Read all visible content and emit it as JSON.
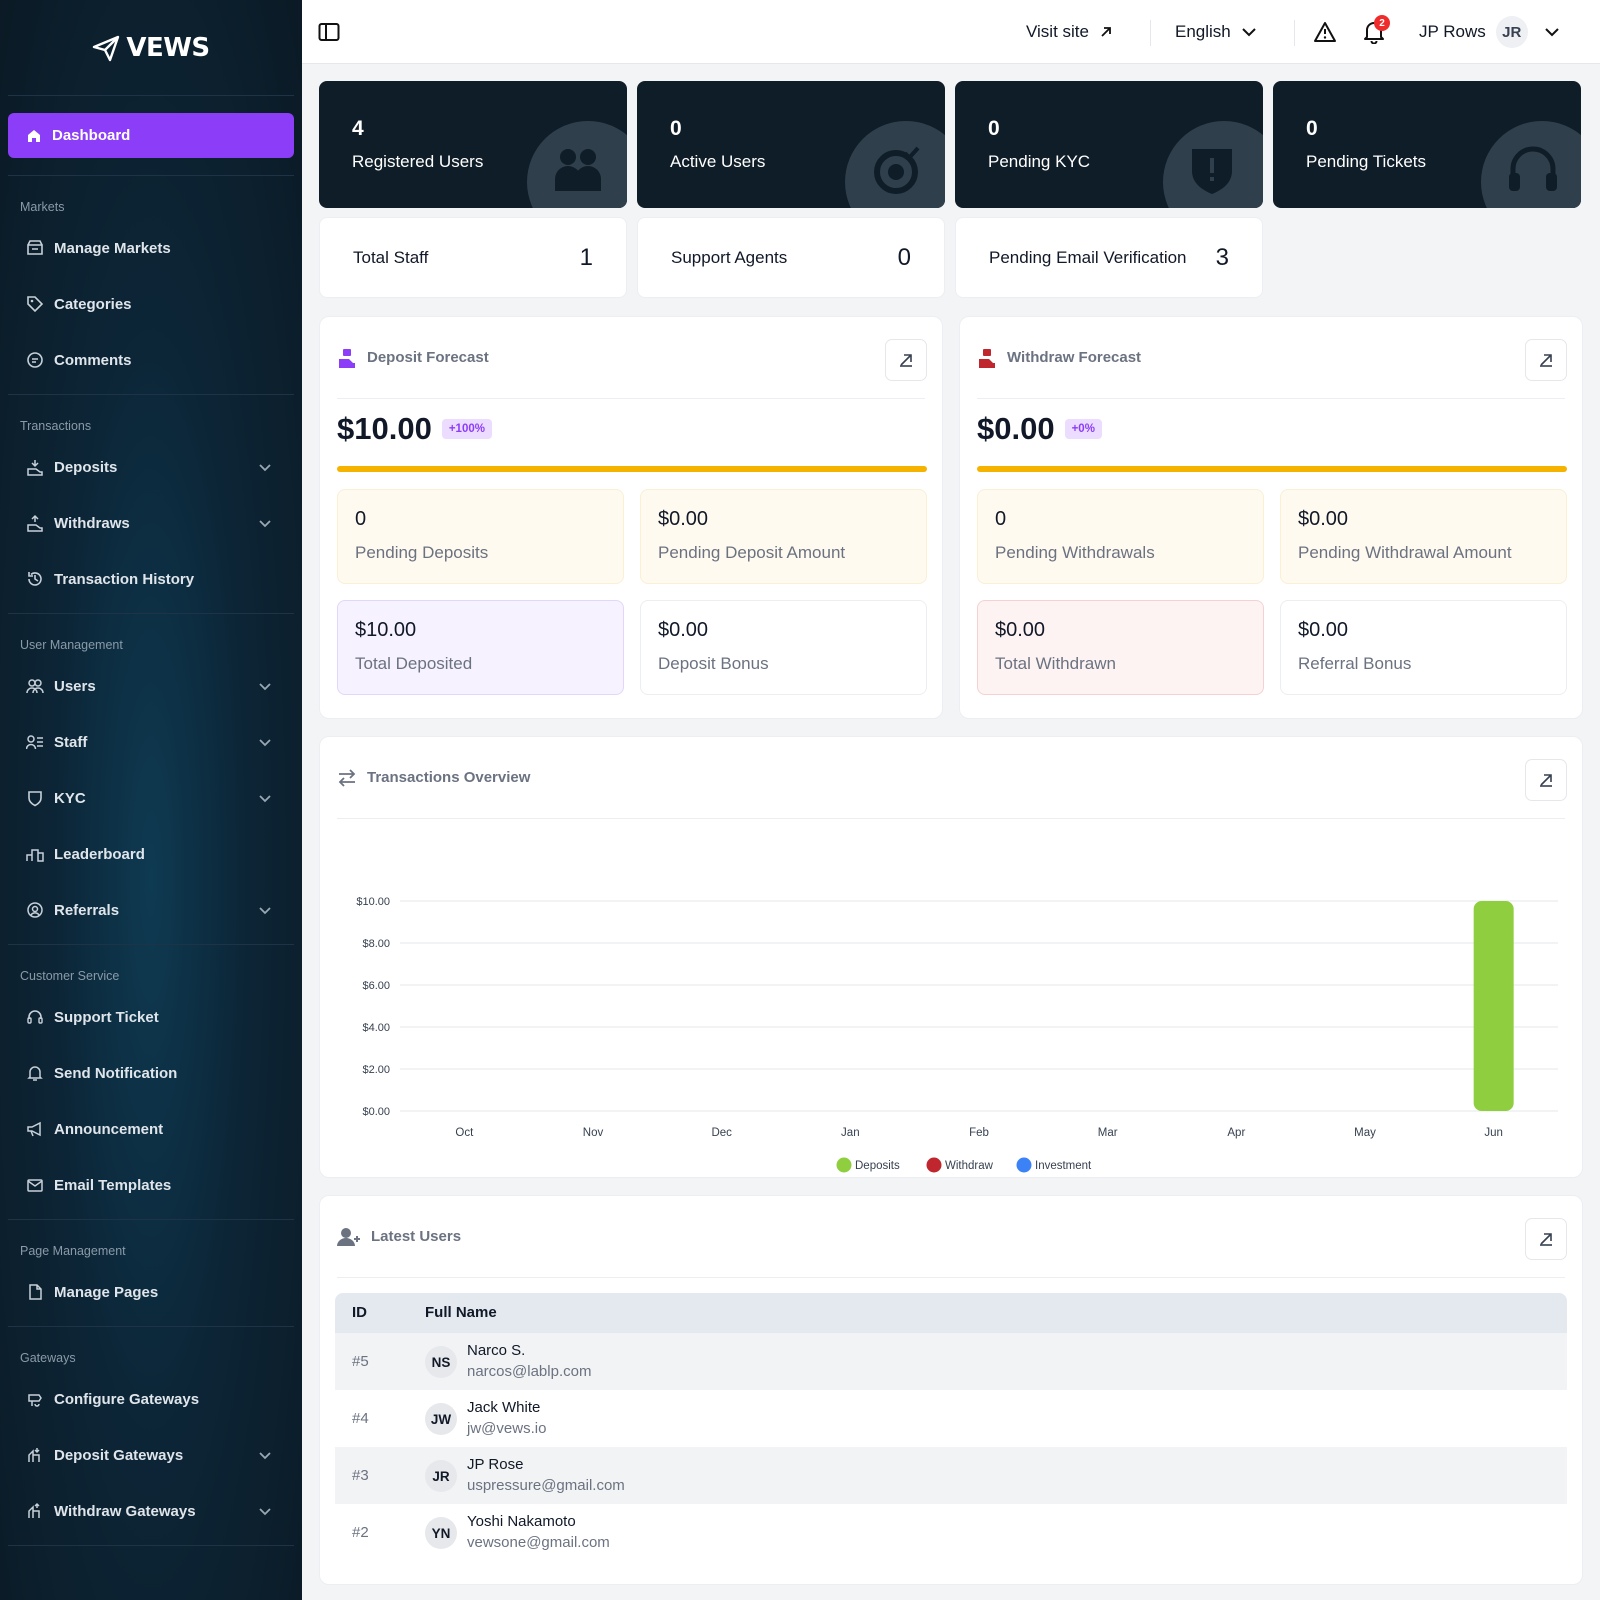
{
  "brand": {
    "name": "VEWS"
  },
  "sidebar": {
    "active": {
      "label": "Dashboard",
      "icon": "home-icon"
    },
    "sections": [
      {
        "title": "Markets",
        "items": [
          {
            "label": "Manage Markets",
            "icon": "store-icon",
            "expandable": false
          },
          {
            "label": "Categories",
            "icon": "tag-icon",
            "expandable": false
          },
          {
            "label": "Comments",
            "icon": "comment-icon",
            "expandable": false
          }
        ]
      },
      {
        "title": "Transactions",
        "items": [
          {
            "label": "Deposits",
            "icon": "deposit-icon",
            "expandable": true
          },
          {
            "label": "Withdraws",
            "icon": "withdraw-icon",
            "expandable": true
          },
          {
            "label": "Transaction History",
            "icon": "history-icon",
            "expandable": false
          }
        ]
      },
      {
        "title": "User Management",
        "items": [
          {
            "label": "Users",
            "icon": "users-icon",
            "expandable": true
          },
          {
            "label": "Staff",
            "icon": "staff-icon",
            "expandable": true
          },
          {
            "label": "KYC",
            "icon": "shield-icon",
            "expandable": true
          },
          {
            "label": "Leaderboard",
            "icon": "podium-icon",
            "expandable": false
          },
          {
            "label": "Referrals",
            "icon": "referral-icon",
            "expandable": true
          }
        ]
      },
      {
        "title": "Customer Service",
        "items": [
          {
            "label": "Support Ticket",
            "icon": "headset-icon",
            "expandable": false
          },
          {
            "label": "Send Notification",
            "icon": "bell-icon",
            "expandable": false
          },
          {
            "label": "Announcement",
            "icon": "megaphone-icon",
            "expandable": false
          },
          {
            "label": "Email Templates",
            "icon": "mail-icon",
            "expandable": false
          }
        ]
      },
      {
        "title": "Page Management",
        "items": [
          {
            "label": "Manage Pages",
            "icon": "page-icon",
            "expandable": false
          }
        ]
      },
      {
        "title": "Gateways",
        "items": [
          {
            "label": "Configure Gateways",
            "icon": "gateway-icon",
            "expandable": false
          },
          {
            "label": "Deposit Gateways",
            "icon": "deposit-gateway-icon",
            "expandable": true
          },
          {
            "label": "Withdraw Gateways",
            "icon": "withdraw-gateway-icon",
            "expandable": true
          }
        ]
      }
    ]
  },
  "topbar": {
    "visit_site": "Visit site",
    "language": "English",
    "notification_count": "2",
    "user_name": "JP Rows",
    "user_initials": "JR"
  },
  "stats": [
    {
      "value": "4",
      "label": "Registered Users",
      "icon": "users-icon"
    },
    {
      "value": "0",
      "label": "Active Users",
      "icon": "target-check-icon"
    },
    {
      "value": "0",
      "label": "Pending KYC",
      "icon": "shield-alert-icon"
    },
    {
      "value": "0",
      "label": "Pending Tickets",
      "icon": "headset-icon"
    }
  ],
  "mini_stats": [
    {
      "label": "Total Staff",
      "value": "1"
    },
    {
      "label": "Support Agents",
      "value": "0"
    },
    {
      "label": "Pending Email Verification",
      "value": "3"
    }
  ],
  "deposit_forecast": {
    "title": "Deposit Forecast",
    "amount": "$10.00",
    "change": "+100%",
    "boxes": [
      {
        "value": "0",
        "label": "Pending Deposits"
      },
      {
        "value": "$0.00",
        "label": "Pending Deposit Amount"
      },
      {
        "value": "$10.00",
        "label": "Total Deposited"
      },
      {
        "value": "$0.00",
        "label": "Deposit Bonus"
      }
    ]
  },
  "withdraw_forecast": {
    "title": "Withdraw Forecast",
    "amount": "$0.00",
    "change": "+0%",
    "boxes": [
      {
        "value": "0",
        "label": "Pending Withdrawals"
      },
      {
        "value": "$0.00",
        "label": "Pending Withdrawal Amount"
      },
      {
        "value": "$0.00",
        "label": "Total Withdrawn"
      },
      {
        "value": "$0.00",
        "label": "Referral Bonus"
      }
    ]
  },
  "transactions_overview": {
    "title": "Transactions Overview"
  },
  "chart_data": {
    "type": "bar",
    "categories": [
      "Oct",
      "Nov",
      "Dec",
      "Jan",
      "Feb",
      "Mar",
      "Apr",
      "May",
      "Jun"
    ],
    "series": [
      {
        "name": "Deposits",
        "color": "#8fcf3f",
        "values": [
          0,
          0,
          0,
          0,
          0,
          0,
          0,
          0,
          10
        ]
      },
      {
        "name": "Withdraw",
        "color": "#c0262d",
        "values": [
          0,
          0,
          0,
          0,
          0,
          0,
          0,
          0,
          0
        ]
      },
      {
        "name": "Investment",
        "color": "#3b82f6",
        "values": [
          0,
          0,
          0,
          0,
          0,
          0,
          0,
          0,
          0
        ]
      }
    ],
    "y_ticks": [
      "$0.00",
      "$2.00",
      "$4.00",
      "$6.00",
      "$8.00",
      "$10.00"
    ],
    "ylim": [
      0,
      10
    ],
    "grid": true,
    "legend": "bottom-center"
  },
  "latest_users": {
    "title": "Latest Users",
    "columns": [
      "ID",
      "Full Name"
    ],
    "rows": [
      {
        "id": "#5",
        "initials": "NS",
        "name": "Narco S.",
        "email": "narcos@lablp.com"
      },
      {
        "id": "#4",
        "initials": "JW",
        "name": "Jack White",
        "email": "jw@vews.io"
      },
      {
        "id": "#3",
        "initials": "JR",
        "name": "JP Rose",
        "email": "uspressure@gmail.com"
      },
      {
        "id": "#2",
        "initials": "YN",
        "name": "Yoshi Nakamoto",
        "email": "vewsone@gmail.com"
      }
    ]
  }
}
